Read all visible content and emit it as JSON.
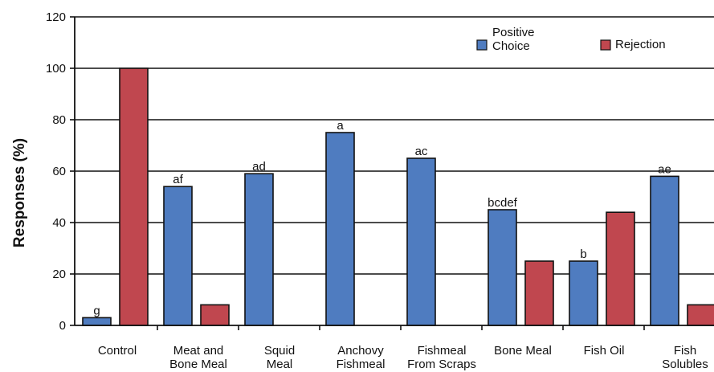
{
  "chart_data": {
    "type": "bar",
    "ylabel": "Responses (%)",
    "ylim": [
      0,
      120
    ],
    "yticks": [
      0,
      20,
      40,
      60,
      80,
      100,
      120
    ],
    "grid": true,
    "legend_position": "top-right",
    "categories": [
      [
        "Control"
      ],
      [
        "Meat and",
        "Bone Meal"
      ],
      [
        "Squid",
        "Meal"
      ],
      [
        "Anchovy",
        "Fishmeal"
      ],
      [
        "Fishmeal",
        "From Scraps"
      ],
      [
        "Bone Meal"
      ],
      [
        "Fish Oil"
      ],
      [
        "Fish",
        "Solubles"
      ]
    ],
    "series": [
      {
        "name": "Positive Choice",
        "legend_lines": [
          "Positive",
          "Choice"
        ],
        "color": "#4f7cc0",
        "values": [
          3,
          54,
          59,
          75,
          65,
          45,
          25,
          58
        ],
        "labels": [
          "g",
          "af",
          "ad",
          "a",
          "ac",
          "bcdef",
          "b",
          "ae"
        ]
      },
      {
        "name": "Rejection",
        "legend_lines": [
          "Rejection"
        ],
        "color": "#c0474f",
        "values": [
          100,
          8,
          0,
          0,
          0,
          25,
          44,
          8
        ],
        "labels": [
          "",
          "",
          "",
          "",
          "",
          "",
          "",
          ""
        ]
      }
    ]
  }
}
